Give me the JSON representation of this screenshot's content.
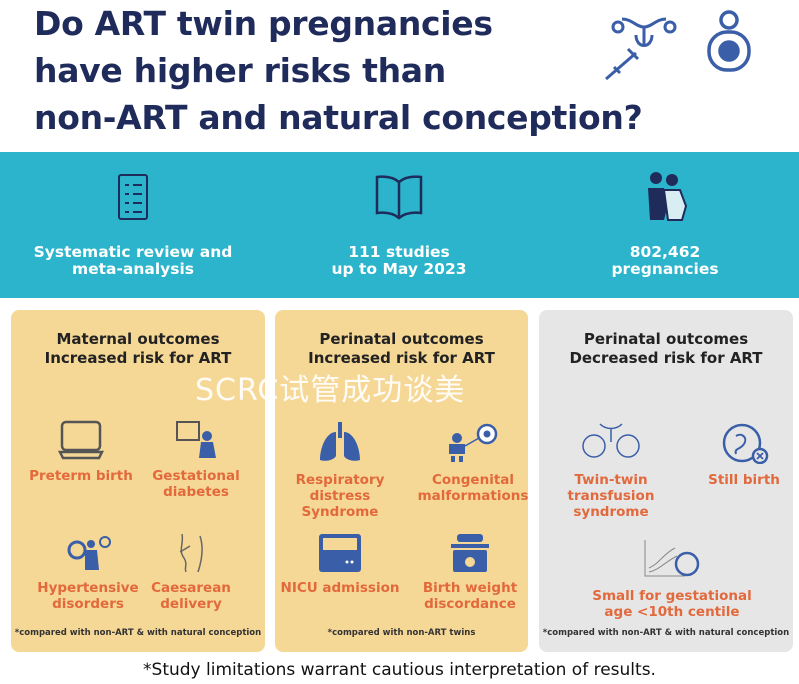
{
  "title_lines": [
    "Do ART twin pregnancies",
    "have higher risks than",
    "non-ART and natural conception?"
  ],
  "stats": [
    {
      "icon": "checklist-icon",
      "lines": [
        "Systematic review and",
        "meta-analysis"
      ]
    },
    {
      "icon": "book-icon",
      "lines": [
        "111 studies",
        "up to May 2023"
      ]
    },
    {
      "icon": "pregnant-women-icon",
      "lines": [
        "802,462",
        "pregnancies"
      ]
    }
  ],
  "panels": [
    {
      "heading": [
        "Maternal outcomes",
        "Increased risk for ART"
      ],
      "items": [
        {
          "label": "Preterm birth",
          "icon": "incubator-icon"
        },
        {
          "label": "Gestational diabetes",
          "icon": "glucose-chart-pregnant-icon"
        },
        {
          "label": "Hypertensive disorders",
          "icon": "blood-pressure-pregnant-icon"
        },
        {
          "label": "Caesarean delivery",
          "icon": "caesarean-icon"
        }
      ],
      "note": "*compared with non-ART & with natural conception"
    },
    {
      "heading": [
        "Perinatal outcomes",
        "Increased risk for ART"
      ],
      "items": [
        {
          "label": "Respiratory distress Syndrome",
          "icon": "lungs-icon"
        },
        {
          "label": "Congenital malformations",
          "icon": "baby-magnifier-icon"
        },
        {
          "label": "NICU admission",
          "icon": "nicu-incubator-icon"
        },
        {
          "label": "Birth weight discordance",
          "icon": "baby-scale-icon"
        }
      ],
      "note": "*compared with non-ART twins"
    },
    {
      "heading": [
        "Perinatal outcomes",
        "Decreased risk for ART"
      ],
      "items": [
        {
          "label": "Twin-twin transfusion syndrome",
          "icon": "twin-fetuses-icon"
        },
        {
          "label": "Still birth",
          "icon": "fetus-cross-icon"
        },
        {
          "label": "Small for gestational age <10th centile",
          "icon": "growth-chart-fetus-icon"
        }
      ],
      "note": "*compared with non-ART & with natural conception"
    }
  ],
  "footer": "*Study limitations warrant cautious interpretation of results.",
  "watermark": "SCRC试管成功谈美",
  "colors": {
    "navy": "#1f2b5a",
    "teal": "#2bb4cb",
    "orange": "#e2693c",
    "yellow_panel": "#f6d896",
    "grey_panel": "#e6e6e6",
    "icon_blue": "#3a5ea8"
  }
}
